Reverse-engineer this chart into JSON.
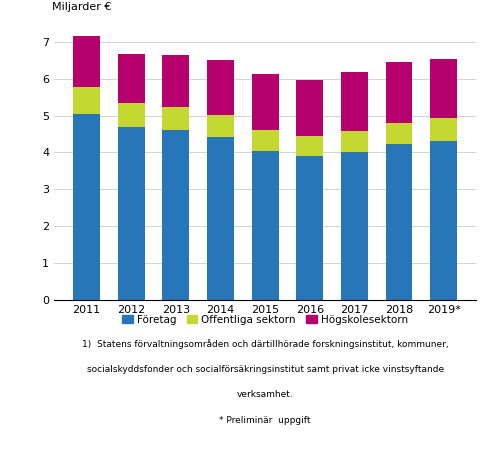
{
  "years": [
    "2011",
    "2012",
    "2013",
    "2014",
    "2015",
    "2016",
    "2017",
    "2018",
    "2019*"
  ],
  "foretag": [
    5.05,
    4.7,
    4.62,
    4.42,
    4.03,
    3.9,
    4.02,
    4.23,
    4.32
  ],
  "offentliga": [
    0.73,
    0.65,
    0.6,
    0.6,
    0.58,
    0.55,
    0.57,
    0.58,
    0.6
  ],
  "hogskolesektorn": [
    1.37,
    1.32,
    1.43,
    1.47,
    1.5,
    1.5,
    1.58,
    1.63,
    1.62
  ],
  "color_foretag": "#2676b8",
  "color_offentliga": "#c5d832",
  "color_hogskolesektorn": "#b5006e",
  "ylabel": "Miljarder €",
  "ylim": [
    0,
    7.5
  ],
  "yticks": [
    0,
    1,
    2,
    3,
    4,
    5,
    6,
    7
  ],
  "legend_foretag": "Företag",
  "legend_offentliga": "Offentliga sektorn",
  "legend_hogskolesektorn": "Högskolesektorn",
  "footnote1": "1)  Statens förvaltningsområden och därtillhörade forskningsinstitut, kommuner,",
  "footnote2": "socialskyddsfonder och socialförsäkringsinstitut samt privat icke vinstsyftande",
  "footnote3": "verksamhet.",
  "footnote4": "* Preliminär  uppgift",
  "bar_width": 0.6
}
